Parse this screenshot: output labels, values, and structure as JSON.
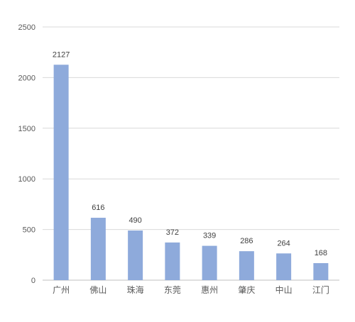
{
  "chart_data": {
    "type": "bar",
    "title": "",
    "xlabel": "",
    "ylabel": "",
    "categories": [
      "广州",
      "佛山",
      "珠海",
      "东莞",
      "惠州",
      "肇庆",
      "中山",
      "江门"
    ],
    "values": [
      2127,
      616,
      490,
      372,
      339,
      286,
      264,
      168
    ],
    "ylim": [
      0,
      2500
    ],
    "yticks": [
      0,
      500,
      1000,
      1500,
      2000,
      2500
    ],
    "grid": true,
    "legend": "none",
    "bar_color": "#8eaadb",
    "grid_color": "#d9d9d9"
  }
}
